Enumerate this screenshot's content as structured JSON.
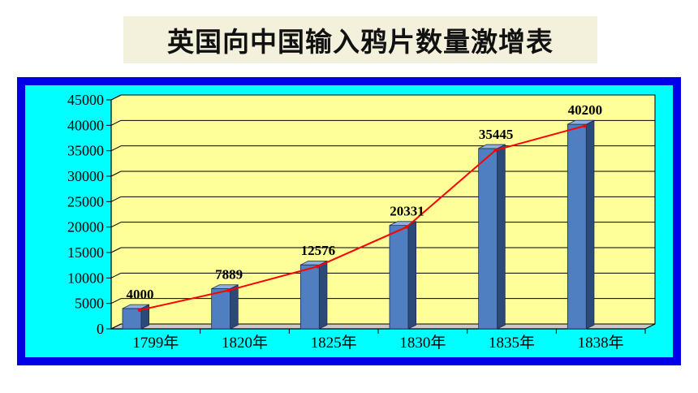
{
  "title": "英国向中国输入鸦片数量激增表",
  "colors": {
    "outer_frame": "#0000e6",
    "frame_fill": "#00ffff",
    "plot_fill": "#ffff99",
    "bar_front": "#4f7fc0",
    "bar_side": "#2c4a78",
    "bar_top": "#8fb0de",
    "line": "#ff0000"
  },
  "chart_data": {
    "type": "bar",
    "categories": [
      "1799年",
      "1820年",
      "1825年",
      "1830年",
      "1835年",
      "1838年"
    ],
    "values": [
      4000,
      7889,
      12576,
      20331,
      35445,
      40200
    ],
    "data_labels": [
      "4000",
      "7889",
      "12576",
      "20331",
      "35445",
      "40200"
    ],
    "yticks": [
      "0",
      "5000",
      "10000",
      "15000",
      "20000",
      "25000",
      "30000",
      "35000",
      "40000",
      "45000"
    ],
    "ylim": [
      0,
      45000
    ],
    "overlay_line": true,
    "grid": true,
    "xlabel": "",
    "ylabel": ""
  }
}
